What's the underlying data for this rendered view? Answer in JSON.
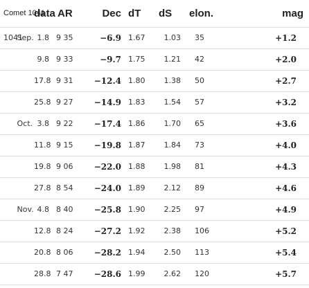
{
  "header": {
    "corner": "Comet 1041",
    "columns": [
      "data",
      "AR",
      "Dec",
      "dT",
      "dS",
      "elon.",
      "mag"
    ]
  },
  "rows": [
    {
      "year": "1041",
      "month": "Sep.",
      "day": "1.8",
      "ar": "9 35",
      "dec": "−6.9",
      "dT": "1.67",
      "dS": "1.03",
      "elon": "35",
      "mag": "+1.2"
    },
    {
      "year": "",
      "month": "",
      "day": "9.8",
      "ar": "9 33",
      "dec": "−9.7",
      "dT": "1.75",
      "dS": "1.21",
      "elon": "42",
      "mag": "+2.0"
    },
    {
      "year": "",
      "month": "",
      "day": "17.8",
      "ar": "9 31",
      "dec": "−12.4",
      "dT": "1.80",
      "dS": "1.38",
      "elon": "50",
      "mag": "+2.7"
    },
    {
      "year": "",
      "month": "",
      "day": "25.8",
      "ar": "9 27",
      "dec": "−14.9",
      "dT": "1.83",
      "dS": "1.54",
      "elon": "57",
      "mag": "+3.2"
    },
    {
      "year": "",
      "month": "Oct.",
      "day": "3.8",
      "ar": "9 22",
      "dec": "−17.4",
      "dT": "1.86",
      "dS": "1.70",
      "elon": "65",
      "mag": "+3.6"
    },
    {
      "year": "",
      "month": "",
      "day": "11.8",
      "ar": "9 15",
      "dec": "−19.8",
      "dT": "1.87",
      "dS": "1.84",
      "elon": "73",
      "mag": "+4.0"
    },
    {
      "year": "",
      "month": "",
      "day": "19.8",
      "ar": "9 06",
      "dec": "−22.0",
      "dT": "1.88",
      "dS": "1.98",
      "elon": "81",
      "mag": "+4.3"
    },
    {
      "year": "",
      "month": "",
      "day": "27.8",
      "ar": "8 54",
      "dec": "−24.0",
      "dT": "1.89",
      "dS": "2.12",
      "elon": "89",
      "mag": "+4.6"
    },
    {
      "year": "",
      "month": "Nov.",
      "day": "4.8",
      "ar": "8 40",
      "dec": "−25.8",
      "dT": "1.90",
      "dS": "2.25",
      "elon": "97",
      "mag": "+4.9"
    },
    {
      "year": "",
      "month": "",
      "day": "12.8",
      "ar": "8 24",
      "dec": "−27.2",
      "dT": "1.92",
      "dS": "2.38",
      "elon": "106",
      "mag": "+5.2"
    },
    {
      "year": "",
      "month": "",
      "day": "20.8",
      "ar": "8 06",
      "dec": "−28.2",
      "dT": "1.94",
      "dS": "2.50",
      "elon": "113",
      "mag": "+5.4"
    },
    {
      "year": "",
      "month": "",
      "day": "28.8",
      "ar": "7 47",
      "dec": "−28.6",
      "dT": "1.99",
      "dS": "2.62",
      "elon": "120",
      "mag": "+5.7"
    }
  ]
}
